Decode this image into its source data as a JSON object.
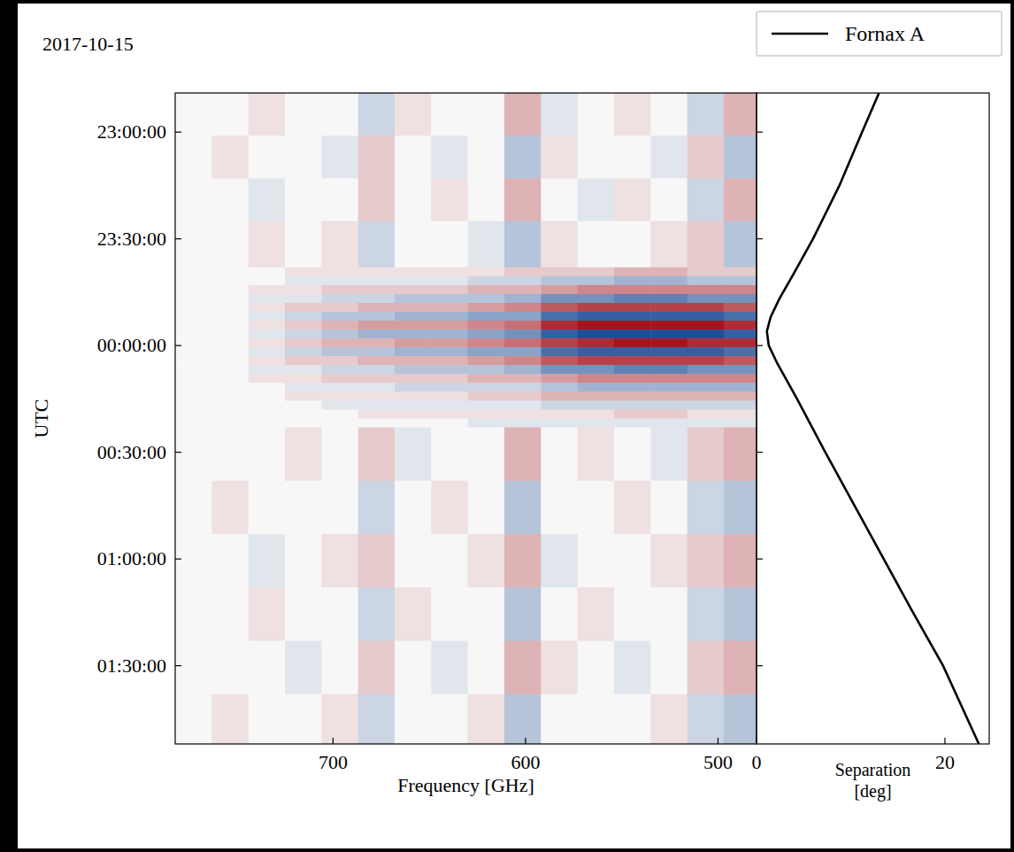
{
  "chart_data": [
    {
      "type": "heatmap",
      "title": "2017-10-15",
      "x_label": "Frequency [GHz]",
      "y_label": "UTC",
      "xlim": [
        782,
        480
      ],
      "ylim": [
        1369,
        1552
      ],
      "xticks": [
        700,
        600,
        500
      ],
      "yticks": [
        {
          "value": 1380,
          "label": "23:00:00"
        },
        {
          "value": 1410,
          "label": "23:30:00"
        },
        {
          "value": 1440,
          "label": "00:00:00"
        },
        {
          "value": 1470,
          "label": "00:30:00"
        },
        {
          "value": 1500,
          "label": "01:00:00"
        },
        {
          "value": 1530,
          "label": "01:30:00"
        }
      ],
      "grid": false,
      "zlim": [
        -1,
        1
      ],
      "x_edges": [
        782,
        763,
        744,
        725,
        706,
        687,
        668,
        649,
        630,
        611,
        592,
        573,
        554,
        535,
        516,
        497,
        480
      ],
      "y_edges": [
        1369,
        1381,
        1393,
        1405,
        1418,
        1420.5,
        1423,
        1425.5,
        1428,
        1430.5,
        1433,
        1435.5,
        1438,
        1440.5,
        1443,
        1445.5,
        1448,
        1450.5,
        1453,
        1455.5,
        1458,
        1460.5,
        1463,
        1478,
        1493,
        1508,
        1523,
        1538,
        1552
      ],
      "cells": [
        [
          0,
          0,
          0.1,
          0,
          0,
          -0.2,
          0.1,
          0,
          0,
          0.3,
          -0.1,
          0,
          0.1,
          0,
          -0.2,
          0.3
        ],
        [
          0,
          0.1,
          0,
          0,
          -0.1,
          0.2,
          0,
          -0.1,
          0,
          -0.3,
          0.1,
          0,
          0,
          -0.1,
          0.2,
          -0.3
        ],
        [
          0,
          0,
          -0.1,
          0,
          0,
          0.2,
          0,
          0.1,
          0,
          0.3,
          0,
          -0.1,
          0.1,
          0,
          -0.2,
          0.3
        ],
        [
          0,
          0,
          0.1,
          0,
          0.1,
          -0.2,
          0,
          0,
          -0.1,
          -0.3,
          0.1,
          0,
          0,
          0.1,
          0.2,
          -0.3
        ],
        [
          0,
          0,
          0,
          0.1,
          0.1,
          0.1,
          0.1,
          0.1,
          0.1,
          0.2,
          0.2,
          0.2,
          0.3,
          0.3,
          0.2,
          0.2
        ],
        [
          0,
          0,
          0,
          -0.1,
          -0.1,
          -0.1,
          -0.1,
          -0.1,
          -0.2,
          -0.2,
          -0.3,
          -0.3,
          -0.4,
          -0.4,
          -0.3,
          -0.3
        ],
        [
          0,
          0,
          0.1,
          0.1,
          0.2,
          0.2,
          0.2,
          0.2,
          0.3,
          0.3,
          0.4,
          0.5,
          0.5,
          0.5,
          0.5,
          0.5
        ],
        [
          0,
          0,
          -0.1,
          -0.1,
          -0.2,
          -0.2,
          -0.3,
          -0.3,
          -0.3,
          -0.4,
          -0.6,
          -0.6,
          -0.7,
          -0.7,
          -0.6,
          -0.6
        ],
        [
          0,
          0,
          0.1,
          0.2,
          0.2,
          0.3,
          0.3,
          0.3,
          0.4,
          0.5,
          0.7,
          0.8,
          0.8,
          0.8,
          0.8,
          0.7
        ],
        [
          0,
          0,
          -0.1,
          -0.2,
          -0.3,
          -0.3,
          -0.4,
          -0.4,
          -0.5,
          -0.5,
          -0.8,
          -0.9,
          -0.9,
          -0.9,
          -0.9,
          -0.8
        ],
        [
          0,
          0,
          0.1,
          0.2,
          0.3,
          0.4,
          0.4,
          0.4,
          0.5,
          0.6,
          0.9,
          1.0,
          1.0,
          1.0,
          1.0,
          0.9
        ],
        [
          0,
          0,
          -0.1,
          -0.2,
          -0.3,
          -0.4,
          -0.4,
          -0.4,
          -0.5,
          -0.6,
          -0.9,
          -1.0,
          -1.0,
          -1.0,
          -1.0,
          -0.9
        ],
        [
          0,
          0,
          0.1,
          0.2,
          0.3,
          0.3,
          0.4,
          0.4,
          0.5,
          0.6,
          0.8,
          0.9,
          1.0,
          1.0,
          0.9,
          0.9
        ],
        [
          0,
          0,
          -0.1,
          -0.2,
          -0.3,
          -0.3,
          -0.4,
          -0.4,
          -0.5,
          -0.5,
          -0.8,
          -0.9,
          -0.9,
          -0.9,
          -0.9,
          -0.8
        ],
        [
          0,
          0,
          0.1,
          0.2,
          0.2,
          0.3,
          0.3,
          0.3,
          0.4,
          0.5,
          0.7,
          0.8,
          0.8,
          0.8,
          0.8,
          0.7
        ],
        [
          0,
          0,
          -0.1,
          -0.1,
          -0.2,
          -0.2,
          -0.3,
          -0.3,
          -0.3,
          -0.4,
          -0.6,
          -0.6,
          -0.7,
          -0.7,
          -0.6,
          -0.6
        ],
        [
          0,
          0,
          0.1,
          0.1,
          0.2,
          0.2,
          0.2,
          0.2,
          0.3,
          0.3,
          0.4,
          0.5,
          0.5,
          0.5,
          0.5,
          0.5
        ],
        [
          0,
          0,
          0,
          -0.1,
          -0.1,
          -0.1,
          -0.2,
          -0.2,
          -0.2,
          -0.2,
          -0.3,
          -0.4,
          -0.4,
          -0.4,
          -0.4,
          -0.4
        ],
        [
          0,
          0,
          0,
          0.1,
          0.1,
          0.1,
          0.1,
          0.1,
          0.2,
          0.2,
          0.3,
          0.3,
          0.3,
          0.3,
          0.3,
          0.3
        ],
        [
          0,
          0,
          0,
          0,
          -0.1,
          -0.1,
          -0.1,
          -0.1,
          -0.1,
          -0.1,
          -0.2,
          -0.2,
          -0.2,
          -0.2,
          -0.2,
          -0.2
        ],
        [
          0,
          0,
          0,
          0,
          0,
          0.1,
          0.1,
          0.1,
          0.1,
          0.1,
          0.1,
          0.1,
          0.2,
          0.2,
          0.1,
          0.1
        ],
        [
          0,
          0,
          0,
          0,
          0,
          0,
          0,
          0,
          -0.1,
          -0.1,
          -0.1,
          -0.1,
          -0.1,
          -0.1,
          -0.1,
          -0.1
        ],
        [
          0,
          0,
          0,
          0.1,
          0,
          0.2,
          -0.1,
          0,
          0,
          0.3,
          0,
          0.1,
          0,
          -0.1,
          0.2,
          0.3
        ],
        [
          0,
          0.1,
          0,
          0,
          0,
          -0.2,
          0,
          0.1,
          0,
          -0.3,
          0,
          0,
          0.1,
          0,
          -0.2,
          -0.3
        ],
        [
          0,
          0,
          -0.1,
          0,
          0.1,
          0.2,
          0,
          0,
          0.1,
          0.3,
          -0.1,
          0,
          0,
          0.1,
          0.2,
          0.3
        ],
        [
          0,
          0,
          0.1,
          0,
          0,
          -0.2,
          0.1,
          0,
          0,
          -0.3,
          0,
          0.1,
          0,
          0,
          -0.2,
          -0.3
        ],
        [
          0,
          0,
          0,
          -0.1,
          0,
          0.2,
          0,
          -0.1,
          0,
          0.3,
          0.1,
          0,
          -0.1,
          0,
          0.2,
          0.3
        ],
        [
          0,
          0.1,
          0,
          0,
          0.1,
          -0.2,
          0,
          0,
          0.1,
          -0.3,
          0,
          0,
          0,
          0.1,
          -0.2,
          -0.3
        ]
      ]
    },
    {
      "type": "line",
      "x_label": "Separation\n[deg]",
      "xlim": [
        0,
        24.7
      ],
      "ylim": [
        1369,
        1552
      ],
      "xticks": [
        0,
        20
      ],
      "yticks": [
        1380,
        1410,
        1440,
        1470,
        1500,
        1530
      ],
      "tick_labels": "x",
      "grid": false,
      "legend": "upper right",
      "series": [
        {
          "name": "Fornax A",
          "color": "#000000",
          "line_style": "solid",
          "x": [
            13.0,
            11.2,
            8.8,
            6.0,
            3.9,
            2.4,
            1.5,
            1.1,
            1.3,
            2.2,
            4.3,
            7.3,
            10.4,
            13.5,
            16.6,
            19.8,
            23.6
          ],
          "y": [
            1369,
            1380,
            1395,
            1410,
            1420,
            1427,
            1432,
            1436,
            1440,
            1445,
            1455,
            1470,
            1485,
            1500,
            1515,
            1530,
            1552
          ]
        }
      ]
    }
  ]
}
